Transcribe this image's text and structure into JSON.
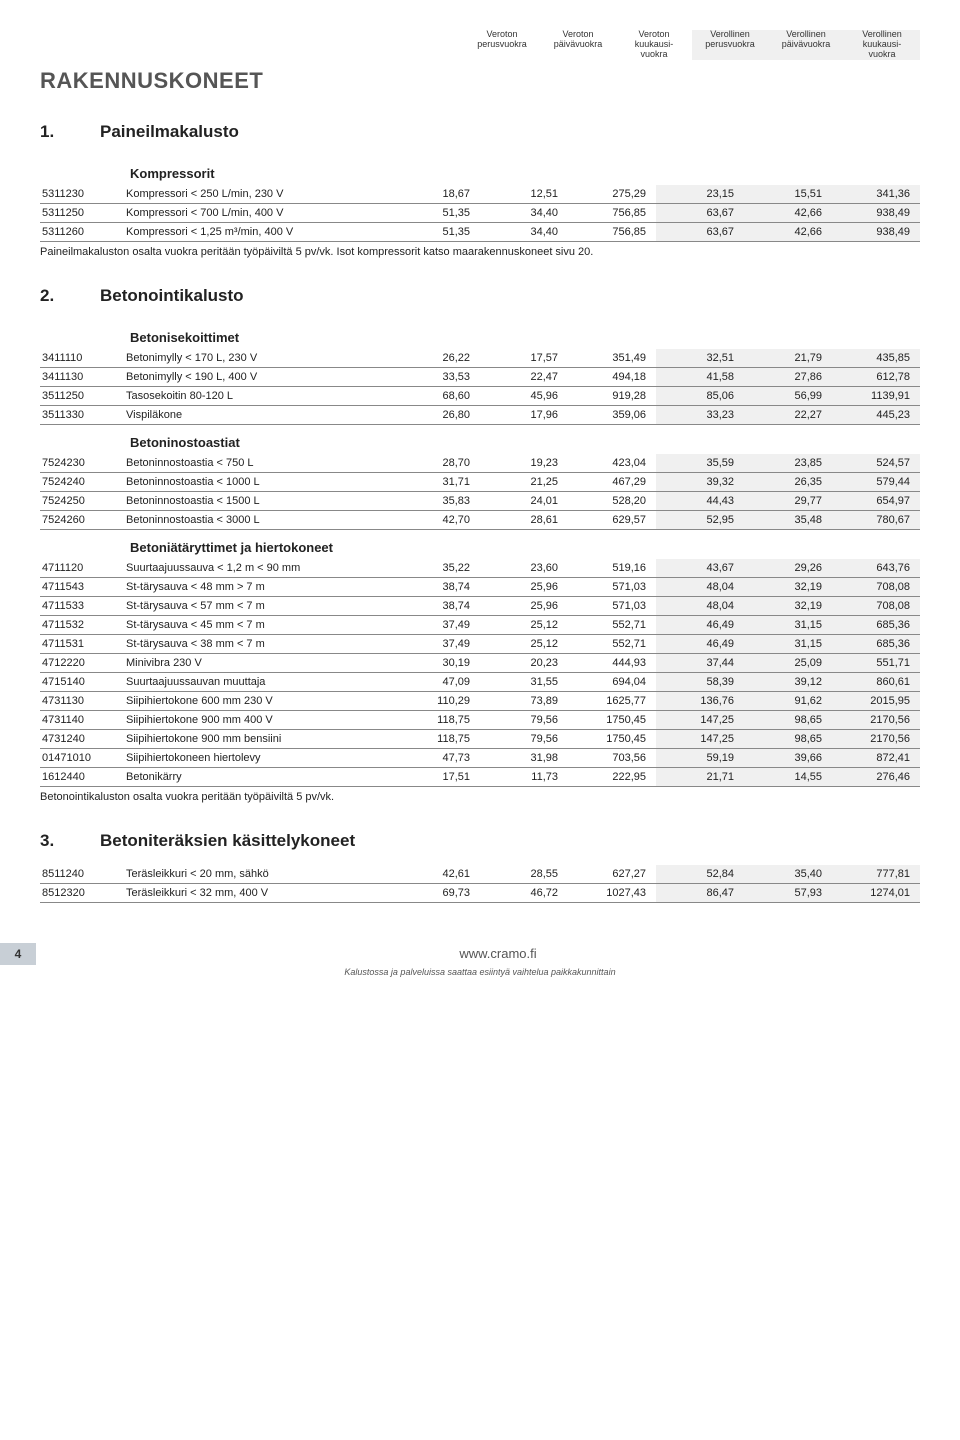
{
  "headers": [
    "Veroton\nperusvuokra",
    "Veroton\npäivävuokra",
    "Veroton\nkuukausi-\nvuokra",
    "Verollinen\nperusvuokra",
    "Verollinen\npäivävuokra",
    "Verollinen\nkuukausi-\nvuokra"
  ],
  "page_title": "RAKENNUSKONEET",
  "sections": [
    {
      "num": "1.",
      "title": "Paineilmakalusto",
      "groups": [
        {
          "sub": "Kompressorit",
          "rows": [
            [
              "5311230",
              "Kompressori < 250 L/min, 230 V",
              "18,67",
              "12,51",
              "275,29",
              "23,15",
              "15,51",
              "341,36"
            ],
            [
              "5311250",
              "Kompressori < 700 L/min, 400 V",
              "51,35",
              "34,40",
              "756,85",
              "63,67",
              "42,66",
              "938,49"
            ],
            [
              "5311260",
              "Kompressori < 1,25 m³/min, 400 V",
              "51,35",
              "34,40",
              "756,85",
              "63,67",
              "42,66",
              "938,49"
            ]
          ],
          "note": "Paineilmakaluston osalta vuokra peritään työpäiviltä 5 pv/vk. Isot kompressorit katso maarakennuskoneet sivu 20."
        }
      ]
    },
    {
      "num": "2.",
      "title": "Betonointikalusto",
      "groups": [
        {
          "sub": "Betonisekoittimet",
          "rows": [
            [
              "3411110",
              "Betonimylly < 170 L, 230 V",
              "26,22",
              "17,57",
              "351,49",
              "32,51",
              "21,79",
              "435,85"
            ],
            [
              "3411130",
              "Betonimylly < 190 L, 400 V",
              "33,53",
              "22,47",
              "494,18",
              "41,58",
              "27,86",
              "612,78"
            ],
            [
              "3511250",
              "Tasosekoitin 80-120 L",
              "68,60",
              "45,96",
              "919,28",
              "85,06",
              "56,99",
              "1139,91"
            ],
            [
              "3511330",
              "Vispiläkone",
              "26,80",
              "17,96",
              "359,06",
              "33,23",
              "22,27",
              "445,23"
            ]
          ]
        },
        {
          "sub": "Betoninostoastiat",
          "rows": [
            [
              "7524230",
              "Betoninnostoastia < 750 L",
              "28,70",
              "19,23",
              "423,04",
              "35,59",
              "23,85",
              "524,57"
            ],
            [
              "7524240",
              "Betoninnostoastia < 1000 L",
              "31,71",
              "21,25",
              "467,29",
              "39,32",
              "26,35",
              "579,44"
            ],
            [
              "7524250",
              "Betoninnostoastia < 1500 L",
              "35,83",
              "24,01",
              "528,20",
              "44,43",
              "29,77",
              "654,97"
            ],
            [
              "7524260",
              "Betoninnostoastia < 3000 L",
              "42,70",
              "28,61",
              "629,57",
              "52,95",
              "35,48",
              "780,67"
            ]
          ]
        },
        {
          "sub": "Betoniätäryttimet ja hiertokoneet",
          "rows": [
            [
              "4711120",
              "Suurtaajuussauva < 1,2 m < 90 mm",
              "35,22",
              "23,60",
              "519,16",
              "43,67",
              "29,26",
              "643,76"
            ],
            [
              "4711543",
              "St-tärysauva < 48 mm > 7 m",
              "38,74",
              "25,96",
              "571,03",
              "48,04",
              "32,19",
              "708,08"
            ],
            [
              "4711533",
              "St-tärysauva < 57 mm < 7 m",
              "38,74",
              "25,96",
              "571,03",
              "48,04",
              "32,19",
              "708,08"
            ],
            [
              "4711532",
              "St-tärysauva < 45 mm < 7 m",
              "37,49",
              "25,12",
              "552,71",
              "46,49",
              "31,15",
              "685,36"
            ],
            [
              "4711531",
              "St-tärysauva < 38 mm < 7 m",
              "37,49",
              "25,12",
              "552,71",
              "46,49",
              "31,15",
              "685,36"
            ],
            [
              "4712220",
              "Minivibra 230 V",
              "30,19",
              "20,23",
              "444,93",
              "37,44",
              "25,09",
              "551,71"
            ],
            [
              "4715140",
              "Suurtaajuussauvan muuttaja",
              "47,09",
              "31,55",
              "694,04",
              "58,39",
              "39,12",
              "860,61"
            ],
            [
              "4731130",
              "Siipihiertokone 600 mm 230 V",
              "110,29",
              "73,89",
              "1625,77",
              "136,76",
              "91,62",
              "2015,95"
            ],
            [
              "4731140",
              "Siipihiertokone 900 mm 400 V",
              "118,75",
              "79,56",
              "1750,45",
              "147,25",
              "98,65",
              "2170,56"
            ],
            [
              "4731240",
              "Siipihiertokone 900 mm bensiini",
              "118,75",
              "79,56",
              "1750,45",
              "147,25",
              "98,65",
              "2170,56"
            ],
            [
              "01471010",
              "Siipihiertokoneen hiertolevy",
              "47,73",
              "31,98",
              "703,56",
              "59,19",
              "39,66",
              "872,41"
            ],
            [
              "1612440",
              "Betonikärry",
              "17,51",
              "11,73",
              "222,95",
              "21,71",
              "14,55",
              "276,46"
            ]
          ],
          "note": "Betonointikaluston osalta vuokra peritään työpäiviltä 5 pv/vk."
        }
      ]
    },
    {
      "num": "3.",
      "title": "Betoniteräksien käsittelykoneet",
      "groups": [
        {
          "sub": "",
          "rows": [
            [
              "8511240",
              "Teräsleikkuri < 20 mm, sähkö",
              "42,61",
              "28,55",
              "627,27",
              "52,84",
              "35,40",
              "777,81"
            ],
            [
              "8512320",
              "Teräsleikkuri < 32 mm, 400 V",
              "69,73",
              "46,72",
              "1027,43",
              "86,47",
              "57,93",
              "1274,01"
            ]
          ]
        }
      ]
    }
  ],
  "footer": {
    "page": "4",
    "url": "www.cramo.fi",
    "note": "Kalustossa ja palveluissa saattaa esiintyä vaihtelua paikkakunnittain"
  }
}
